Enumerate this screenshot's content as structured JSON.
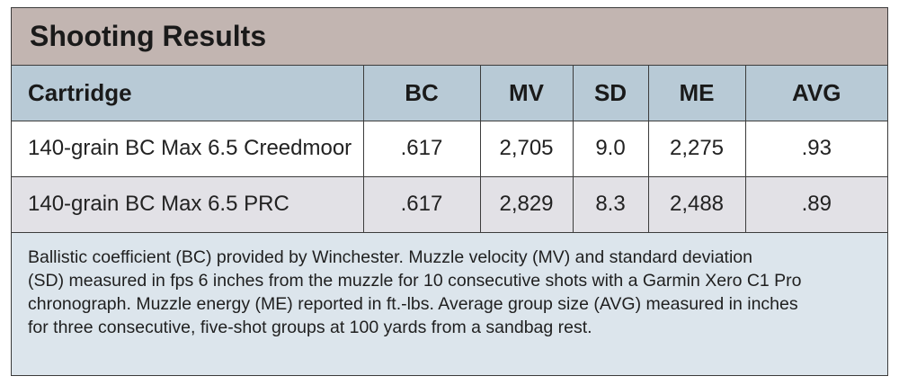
{
  "title": "Shooting Results",
  "table": {
    "headers": [
      "Cartridge",
      "BC",
      "MV",
      "SD",
      "ME",
      "AVG"
    ],
    "rows": [
      [
        "140-grain BC Max 6.5 Creedmoor",
        ".617",
        "2,705",
        "9.0",
        "2,275",
        ".93"
      ],
      [
        "140-grain BC Max 6.5 PRC",
        ".617",
        "2,829",
        "8.3",
        "2,488",
        ".89"
      ]
    ]
  },
  "note_lines": [
    "Ballistic coefficient (BC) provided by Winchester. Muzzle velocity (MV) and standard deviation",
    "(SD) measured in fps 6 inches from the muzzle for 10 consecutive shots with a Garmin Xero C1 Pro",
    "chronograph. Muzzle energy (ME) reported in ft.-lbs. Average group size (AVG) measured in inches",
    "for three consecutive, five-shot groups at 100 yards from a sandbag rest."
  ]
}
